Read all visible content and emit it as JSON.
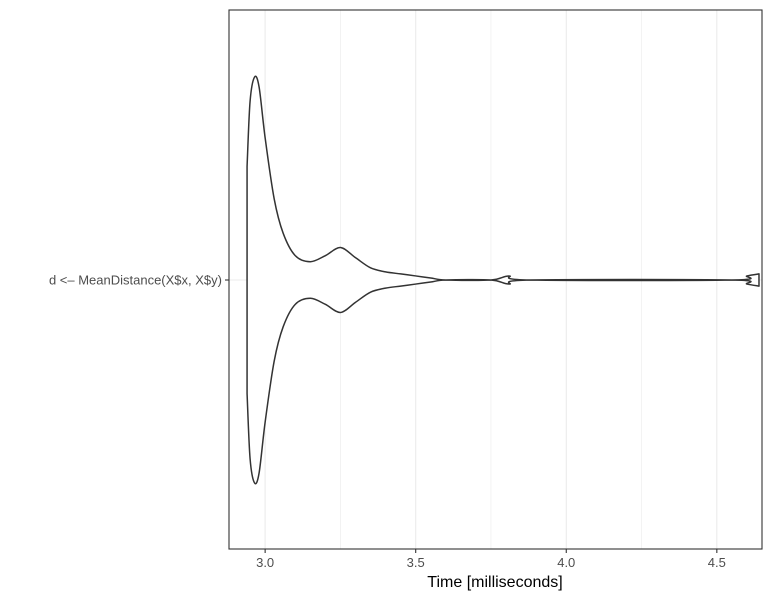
{
  "chart_data": {
    "type": "violin",
    "orientation": "horizontal",
    "xlabel": "Time [milliseconds]",
    "ylabel": "",
    "xlim": [
      2.88,
      4.65
    ],
    "x_ticks": [
      3.0,
      3.5,
      4.0,
      4.5
    ],
    "x_tick_labels": [
      "3.0",
      "3.5",
      "4.0",
      "4.5"
    ],
    "categories": [
      "d <– MeanDistance(X$x, X$y)"
    ],
    "grid": true,
    "theme": "bw",
    "series": [
      {
        "category": "d <– MeanDistance(X$x, X$y)",
        "min": 2.94,
        "max": 4.64,
        "density_profile": [
          {
            "x": 2.94,
            "width": 0.56
          },
          {
            "x": 2.95,
            "width": 0.88
          },
          {
            "x": 2.965,
            "width": 1.0
          },
          {
            "x": 2.98,
            "width": 0.95
          },
          {
            "x": 3.0,
            "width": 0.7
          },
          {
            "x": 3.03,
            "width": 0.4
          },
          {
            "x": 3.06,
            "width": 0.23
          },
          {
            "x": 3.1,
            "width": 0.12
          },
          {
            "x": 3.15,
            "width": 0.09
          },
          {
            "x": 3.2,
            "width": 0.12
          },
          {
            "x": 3.25,
            "width": 0.16
          },
          {
            "x": 3.3,
            "width": 0.11
          },
          {
            "x": 3.35,
            "width": 0.06
          },
          {
            "x": 3.4,
            "width": 0.04
          },
          {
            "x": 3.45,
            "width": 0.03
          },
          {
            "x": 3.5,
            "width": 0.02
          },
          {
            "x": 3.55,
            "width": 0.01
          },
          {
            "x": 3.6,
            "width": 0.0
          },
          {
            "x": 3.75,
            "width": 0.0
          },
          {
            "x": 3.81,
            "width": 0.02
          },
          {
            "x": 3.88,
            "width": 0.0
          },
          {
            "x": 4.55,
            "width": 0.0
          },
          {
            "x": 4.6,
            "width": 0.02
          },
          {
            "x": 4.64,
            "width": 0.03
          }
        ]
      }
    ]
  },
  "colors": {
    "outline": "#333333",
    "grid": "#ebebeb",
    "panel_border": "#333333",
    "background": "#ffffff"
  }
}
